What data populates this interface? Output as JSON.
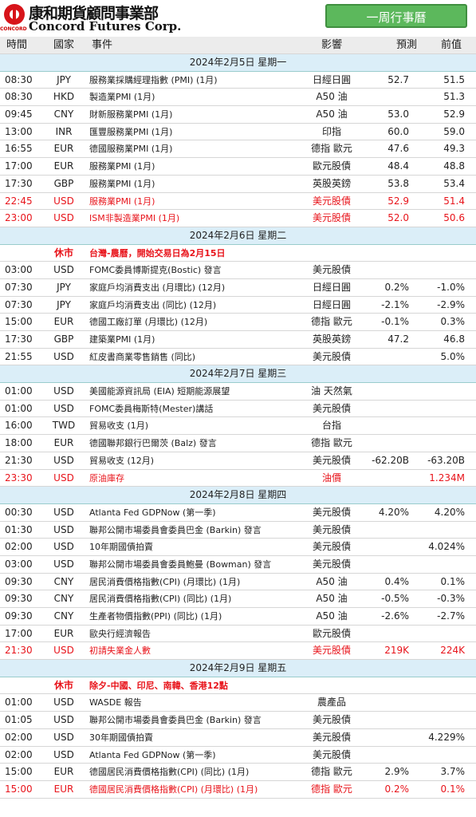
{
  "header": {
    "logo_text": "康和期貨顧問事業部",
    "logo_subtext": "Concord Futures Corp.",
    "logo_badge": "CONCORD",
    "button": "一周行事曆"
  },
  "columns": [
    "時間",
    "國家",
    "事件",
    "影響",
    "預測",
    "前值"
  ],
  "highlight_color": "#e8141b",
  "days": [
    {
      "date": "2024年2月5日  星期一",
      "rows": [
        {
          "time": "08:30",
          "country": "JPY",
          "event": "服務業採購經理指數 (PMI) (1月)",
          "impact": "日經日圓",
          "forecast": "52.7",
          "previous": "51.5"
        },
        {
          "time": "08:30",
          "country": "HKD",
          "event": "製造業PMI (1月)",
          "impact": "A50 油",
          "previous": "51.3"
        },
        {
          "time": "09:45",
          "country": "CNY",
          "event": "財新服務業PMI (1月)",
          "impact": "A50 油",
          "forecast": "53.0",
          "previous": "52.9"
        },
        {
          "time": "13:00",
          "country": "INR",
          "event": "匯豐服務業PMI (1月)",
          "impact": "印指",
          "forecast": "60.0",
          "previous": "59.0"
        },
        {
          "time": "16:55",
          "country": "EUR",
          "event": "德國服務業PMI (1月)",
          "impact": "德指 歐元",
          "forecast": "47.6",
          "previous": "49.3"
        },
        {
          "time": "17:00",
          "country": "EUR",
          "event": "服務業PMI (1月)",
          "impact": "歐元股債",
          "forecast": "48.4",
          "previous": "48.8"
        },
        {
          "time": "17:30",
          "country": "GBP",
          "event": "服務業PMI (1月)",
          "impact": "英股英鎊",
          "forecast": "53.8",
          "previous": "53.4"
        },
        {
          "time": "22:45",
          "country": "USD",
          "event": "服務業PMI (1月)",
          "impact": "美元股債",
          "forecast": "52.9",
          "previous": "51.4",
          "highlight": true
        },
        {
          "time": "23:00",
          "country": "USD",
          "event": "ISM非製造業PMI (1月)",
          "impact": "美元股債",
          "forecast": "52.0",
          "previous": "50.6",
          "highlight": true
        }
      ]
    },
    {
      "date": "2024年2月6日  星期二",
      "rows": [
        {
          "time": "休市",
          "note": "台灣-農曆，開始交易日為2月15日",
          "holiday": true
        },
        {
          "time": "03:00",
          "country": "USD",
          "event": "FOMC委員博斯提克(Bostic) 發言",
          "impact": "美元股債"
        },
        {
          "time": "07:30",
          "country": "JPY",
          "event": "家庭戶均消費支出 (月環比) (12月)",
          "impact": "日經日圓",
          "forecast": "0.2%",
          "previous": "-1.0%"
        },
        {
          "time": "07:30",
          "country": "JPY",
          "event": "家庭戶均消費支出 (同比) (12月)",
          "impact": "日經日圓",
          "forecast": "-2.1%",
          "previous": "-2.9%"
        },
        {
          "time": "15:00",
          "country": "EUR",
          "event": "德國工廠訂單 (月環比) (12月)",
          "impact": "德指 歐元",
          "forecast": "-0.1%",
          "previous": "0.3%"
        },
        {
          "time": "17:30",
          "country": "GBP",
          "event": "建築業PMI (1月)",
          "impact": "英股英鎊",
          "forecast": "47.2",
          "previous": "46.8"
        },
        {
          "time": "21:55",
          "country": "USD",
          "event": "紅皮書商業零售銷售 (同比)",
          "impact": "美元股債",
          "previous": "5.0%"
        }
      ]
    },
    {
      "date": "2024年2月7日  星期三",
      "rows": [
        {
          "time": "01:00",
          "country": "USD",
          "event": "美國能源資訊局 (EIA) 短期能源展望",
          "impact": "油 天然氣"
        },
        {
          "time": "01:00",
          "country": "USD",
          "event": "FOMC委員梅斯特(Mester)講話",
          "impact": "美元股債"
        },
        {
          "time": "16:00",
          "country": "TWD",
          "event": "貿易收支 (1月)",
          "impact": "台指"
        },
        {
          "time": "18:00",
          "country": "EUR",
          "event": "德國聯邦銀行巴爾茨 (Balz) 發言",
          "impact": "德指 歐元"
        },
        {
          "time": "21:30",
          "country": "USD",
          "event": "貿易收支 (12月)",
          "impact": "美元股債",
          "forecast": "-62.20B",
          "previous": "-63.20B"
        },
        {
          "time": "23:30",
          "country": "USD",
          "event": "原油庫存",
          "impact": "油價",
          "previous": "1.234M",
          "highlight": true
        }
      ]
    },
    {
      "date": "2024年2月8日  星期四",
      "rows": [
        {
          "time": "00:30",
          "country": "USD",
          "event": "Atlanta Fed GDPNow (第一季)",
          "impact": "美元股債",
          "forecast": "4.20%",
          "previous": "4.20%"
        },
        {
          "time": "01:30",
          "country": "USD",
          "event": "聯邦公開市場委員會委員巴金 (Barkin) 發言",
          "impact": "美元股債"
        },
        {
          "time": "02:00",
          "country": "USD",
          "event": "10年期國債拍賣",
          "impact": "美元股債",
          "previous": "4.024%"
        },
        {
          "time": "03:00",
          "country": "USD",
          "event": "聯邦公開市場委員會委員鮑曼 (Bowman) 發言",
          "impact": "美元股債"
        },
        {
          "time": "09:30",
          "country": "CNY",
          "event": "居民消費價格指數(CPI) (月環比) (1月)",
          "impact": "A50 油",
          "forecast": "0.4%",
          "previous": "0.1%"
        },
        {
          "time": "09:30",
          "country": "CNY",
          "event": "居民消費價格指數(CPI) (同比) (1月)",
          "impact": "A50 油",
          "forecast": "-0.5%",
          "previous": "-0.3%"
        },
        {
          "time": "09:30",
          "country": "CNY",
          "event": "生產者物價指數(PPI) (同比) (1月)",
          "impact": "A50 油",
          "forecast": "-2.6%",
          "previous": "-2.7%"
        },
        {
          "time": "17:00",
          "country": "EUR",
          "event": "歐央行經濟報告",
          "impact": "歐元股債"
        },
        {
          "time": "21:30",
          "country": "USD",
          "event": "初請失業金人數",
          "impact": "美元股債",
          "forecast": "219K",
          "previous": "224K",
          "highlight": true
        }
      ]
    },
    {
      "date": "2024年2月9日  星期五",
      "rows": [
        {
          "time": "休市",
          "note": "除夕-中國、印尼、南韓、香港12點",
          "holiday": true
        },
        {
          "time": "01:00",
          "country": "USD",
          "event": "WASDE 報告",
          "impact": "農產品"
        },
        {
          "time": "01:05",
          "country": "USD",
          "event": "聯邦公開市場委員會委員巴金 (Barkin) 發言",
          "impact": "美元股債"
        },
        {
          "time": "02:00",
          "country": "USD",
          "event": "30年期國債拍賣",
          "impact": "美元股債",
          "previous": "4.229%"
        },
        {
          "time": "02:00",
          "country": "USD",
          "event": "Atlanta Fed GDPNow (第一季)",
          "impact": "美元股債"
        },
        {
          "time": "15:00",
          "country": "EUR",
          "event": "德國居民消費價格指數(CPI) (同比) (1月)",
          "impact": "德指 歐元",
          "forecast": "2.9%",
          "previous": "3.7%"
        },
        {
          "time": "15:00",
          "country": "EUR",
          "event": "德國居民消費價格指數(CPI) (月環比) (1月)",
          "impact": "德指 歐元",
          "forecast": "0.2%",
          "previous": "0.1%",
          "highlight": true
        }
      ]
    }
  ]
}
